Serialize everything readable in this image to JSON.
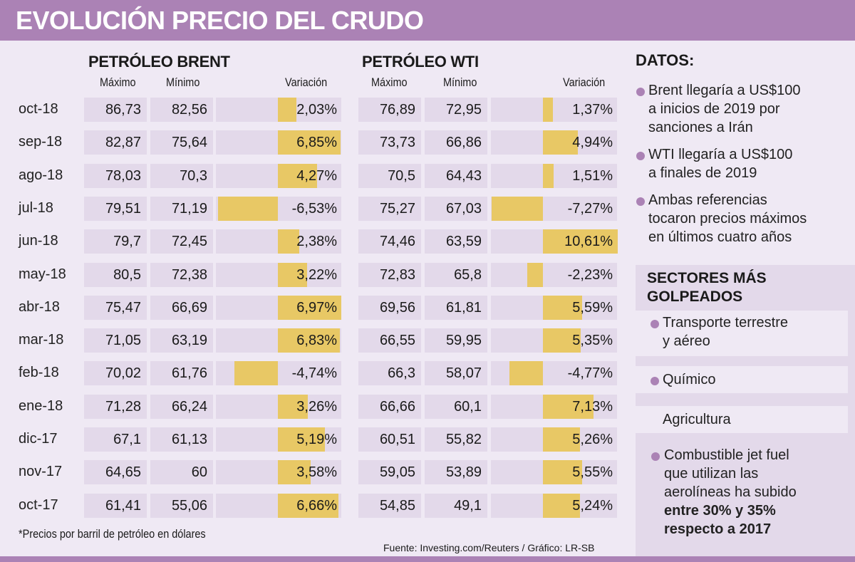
{
  "title": "EVOLUCIÓN PRECIO DEL CRUDO",
  "brent": {
    "title": "PETRÓLEO BRENT",
    "col_max": "Máximo",
    "col_min": "Mínimo",
    "col_var": "Variación"
  },
  "wti": {
    "title": "PETRÓLEO WTI",
    "col_max": "Máximo",
    "col_min": "Mínimo",
    "col_var": "Variación"
  },
  "colors": {
    "header": "#AB82B5",
    "background": "#EFE9F4",
    "cell": "#E3D9EA",
    "bar": "#E8C865",
    "bullet": "#AB82B5"
  },
  "chart_data": {
    "type": "table",
    "title": "EVOLUCIÓN PRECIO DEL CRUDO",
    "categories": [
      "oct-18",
      "sep-18",
      "ago-18",
      "jul-18",
      "jun-18",
      "may-18",
      "abr-18",
      "mar-18",
      "feb-18",
      "ene-18",
      "dic-17",
      "nov-17",
      "oct-17"
    ],
    "series": [
      {
        "name": "PETRÓLEO BRENT",
        "max": [
          "86,73",
          "82,87",
          "78,03",
          "79,51",
          "79,7",
          "80,5",
          "75,47",
          "71,05",
          "70,02",
          "71,28",
          "67,1",
          "64,65",
          "61,41"
        ],
        "min": [
          "82,56",
          "75,64",
          "70,3",
          "71,19",
          "72,45",
          "72,38",
          "66,69",
          "63,19",
          "61,76",
          "66,24",
          "61,13",
          "60",
          "55,06"
        ],
        "variation_label": [
          "2,03%",
          "6,85%",
          "4,27%",
          "-6,53%",
          "2,38%",
          "3,22%",
          "6,97%",
          "6,83%",
          "-4,74%",
          "3,26%",
          "5,19%",
          "3,58%",
          "6,66%"
        ],
        "variation": [
          2.03,
          6.85,
          4.27,
          -6.53,
          2.38,
          3.22,
          6.97,
          6.83,
          -4.74,
          3.26,
          5.19,
          3.58,
          6.66
        ]
      },
      {
        "name": "PETRÓLEO WTI",
        "max": [
          "76,89",
          "73,73",
          "70,5",
          "75,27",
          "74,46",
          "72,83",
          "69,56",
          "66,55",
          "66,3",
          "66,66",
          "60,51",
          "59,05",
          "54,85"
        ],
        "min": [
          "72,95",
          "66,86",
          "64,43",
          "67,03",
          "63,59",
          "65,8",
          "61,81",
          "59,95",
          "58,07",
          "60,1",
          "55,82",
          "53,89",
          "49,1"
        ],
        "variation_label": [
          "1,37%",
          "4,94%",
          "1,51%",
          "-7,27%",
          "10,61%",
          "-2,23%",
          "5,59%",
          "5,35%",
          "-4,77%",
          "7,13%",
          "5,26%",
          "5,55%",
          "5,24%"
        ],
        "variation": [
          1.37,
          4.94,
          1.51,
          -7.27,
          10.61,
          -2.23,
          5.59,
          5.35,
          -4.77,
          7.13,
          5.26,
          5.55,
          5.24
        ]
      }
    ],
    "units": "US$ por barril; variación en %"
  },
  "footnote": "*Precios por barril de petróleo en dólares",
  "source": "Fuente:  Investing.com/Reuters  / Gráfico: LR-SB",
  "datos": {
    "title": "DATOS:",
    "items": [
      [
        "Brent llegaría a US$100",
        "a inicios de 2019 por",
        "sanciones a Irán"
      ],
      [
        "WTI llegaría a US$100",
        "a finales de 2019"
      ],
      [
        "Ambas referencias",
        "tocaron precios máximos",
        "en últimos cuatro años"
      ]
    ]
  },
  "sectores": {
    "title_line1": "SECTORES MÁS",
    "title_line2": "GOLPEADOS",
    "items": [
      [
        "Transporte terrestre",
        "y aéreo"
      ],
      [
        "Químico"
      ],
      [
        "Agricultura"
      ]
    ],
    "jet": {
      "line1": "Combustible jet fuel",
      "line2": "que utilizan las",
      "line3": "aerolíneas ha subido",
      "line4_bold": "entre 30% y 35%",
      "line5_bold": "respecto a 2017"
    }
  }
}
